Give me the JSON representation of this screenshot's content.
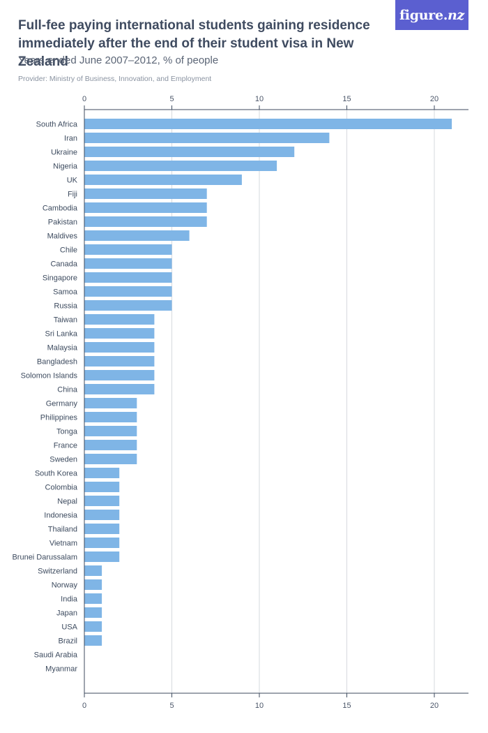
{
  "header": {
    "title": "Full-fee paying international students gaining residence immediately after the end of their student visa in New Zealand",
    "subtitle": "Years ended June 2007–2012, % of people",
    "provider": "Provider: Ministry of Business, Innovation, and Employment"
  },
  "logo": {
    "main": "figure.",
    "suffix": "nz"
  },
  "colors": {
    "bar": "#7fb5e6",
    "grid": "#d6d9de",
    "axis": "#3c4a5e"
  },
  "chart_data": {
    "type": "bar",
    "orientation": "horizontal",
    "title": "Full-fee paying international students gaining residence immediately after the end of their student visa in New Zealand",
    "xlabel": "",
    "ylabel": "",
    "xlim": [
      0,
      22
    ],
    "ticks": [
      0,
      5,
      10,
      15,
      20
    ],
    "categories": [
      "South Africa",
      "Iran",
      "Ukraine",
      "Nigeria",
      "UK",
      "Fiji",
      "Cambodia",
      "Pakistan",
      "Maldives",
      "Chile",
      "Canada",
      "Singapore",
      "Samoa",
      "Russia",
      "Taiwan",
      "Sri Lanka",
      "Malaysia",
      "Bangladesh",
      "Solomon Islands",
      "China",
      "Germany",
      "Philippines",
      "Tonga",
      "France",
      "Sweden",
      "South Korea",
      "Colombia",
      "Nepal",
      "Indonesia",
      "Thailand",
      "Vietnam",
      "Brunei Darussalam",
      "Switzerland",
      "Norway",
      "India",
      "Japan",
      "USA",
      "Brazil",
      "Saudi Arabia",
      "Myanmar"
    ],
    "values": [
      21,
      14,
      12,
      11,
      9,
      7,
      7,
      7,
      6,
      5,
      5,
      5,
      5,
      5,
      4,
      4,
      4,
      4,
      4,
      4,
      3,
      3,
      3,
      3,
      3,
      2,
      2,
      2,
      2,
      2,
      2,
      2,
      1,
      1,
      1,
      1,
      1,
      1,
      0,
      0
    ]
  }
}
